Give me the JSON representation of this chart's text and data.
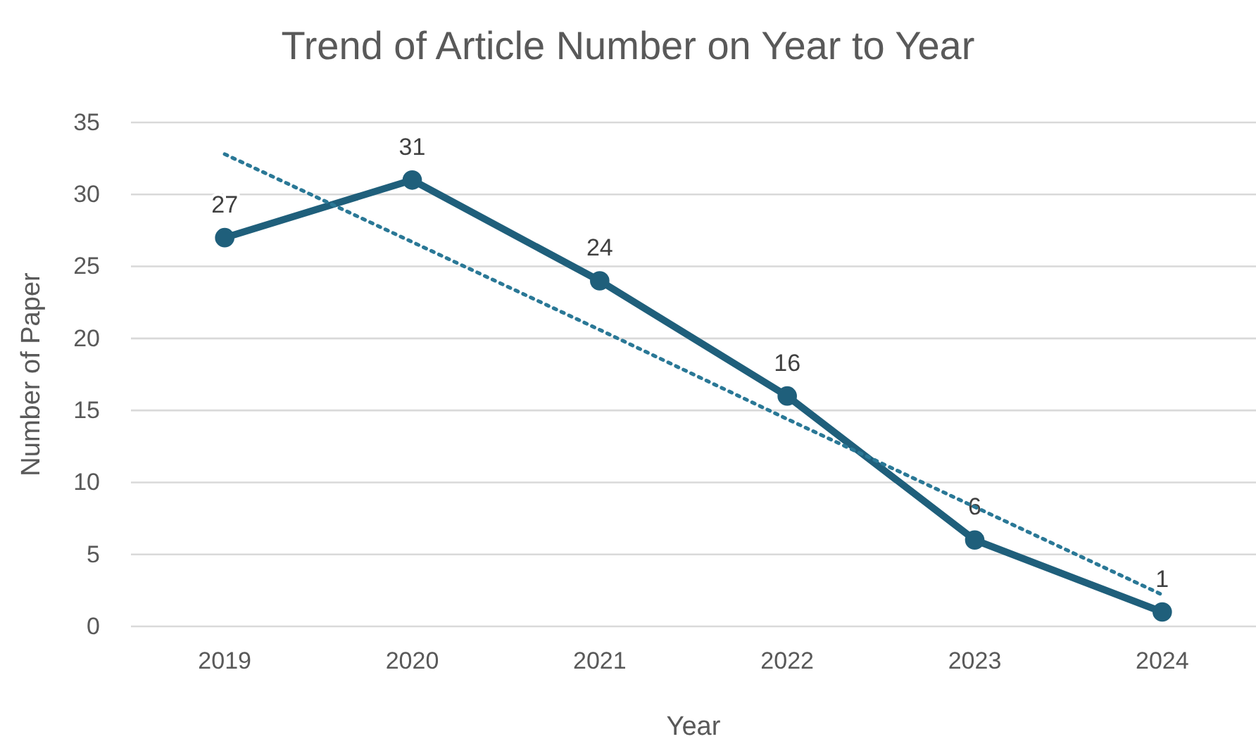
{
  "chart_data": {
    "type": "line",
    "title": "Trend of Article Number on Year to Year",
    "xlabel": "Year",
    "ylabel": "Number of Paper",
    "categories": [
      "2019",
      "2020",
      "2021",
      "2022",
      "2023",
      "2024"
    ],
    "series": [
      {
        "color": "#1f5f7b",
        "values": [
          27,
          31,
          24,
          16,
          6,
          1
        ],
        "value_labels": [
          "27",
          "31",
          "24",
          "16",
          "6",
          "1"
        ],
        "marker": "circle",
        "line_style": "solid"
      },
      {
        "type": "line",
        "color": "#2a7896",
        "values": [
          32.8,
          26.7,
          20.6,
          14.4,
          8.3,
          2.2
        ],
        "marker": "none",
        "line_style": "dotted"
      }
    ],
    "ylim": [
      0,
      35
    ],
    "yticks": [
      0,
      5,
      10,
      15,
      20,
      25,
      30,
      35
    ],
    "grid": "y"
  }
}
